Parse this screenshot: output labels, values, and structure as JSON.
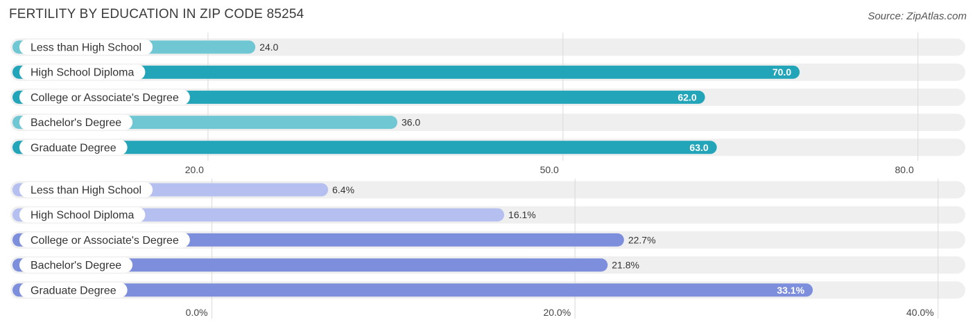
{
  "title": "FERTILITY BY EDUCATION IN ZIP CODE 85254",
  "source": "Source: ZipAtlas.com",
  "colors": {
    "teal_dark": "#23a5b9",
    "teal_light": "#6fc7d3",
    "violet_dark": "#7d8fdc",
    "violet_light": "#b5bff0",
    "track": "#efefef",
    "grid": "#d9d9d9"
  },
  "chart_data": [
    {
      "type": "bar",
      "orientation": "horizontal",
      "categories": [
        "Less than High School",
        "High School Diploma",
        "College or Associate's Degree",
        "Bachelor's Degree",
        "Graduate Degree"
      ],
      "values": [
        24.0,
        70.0,
        62.0,
        36.0,
        63.0
      ],
      "value_labels": [
        "24.0",
        "70.0",
        "62.0",
        "36.0",
        "63.0"
      ],
      "ticks": [
        20.0,
        50.0,
        80.0
      ],
      "tick_labels": [
        "20.0",
        "50.0",
        "80.0"
      ],
      "xlim": [
        3.3,
        84.0
      ],
      "grid": true
    },
    {
      "type": "bar",
      "orientation": "horizontal",
      "categories": [
        "Less than High School",
        "High School Diploma",
        "College or Associate's Degree",
        "Bachelor's Degree",
        "Graduate Degree"
      ],
      "values": [
        6.4,
        16.1,
        22.7,
        21.8,
        33.1
      ],
      "value_labels": [
        "6.4%",
        "16.1%",
        "22.7%",
        "21.8%",
        "33.1%"
      ],
      "ticks": [
        0.0,
        20.0,
        40.0
      ],
      "tick_labels": [
        "0.0%",
        "20.0%",
        "40.0%"
      ],
      "xlim": [
        -11.1,
        41.5
      ],
      "grid": true
    }
  ]
}
